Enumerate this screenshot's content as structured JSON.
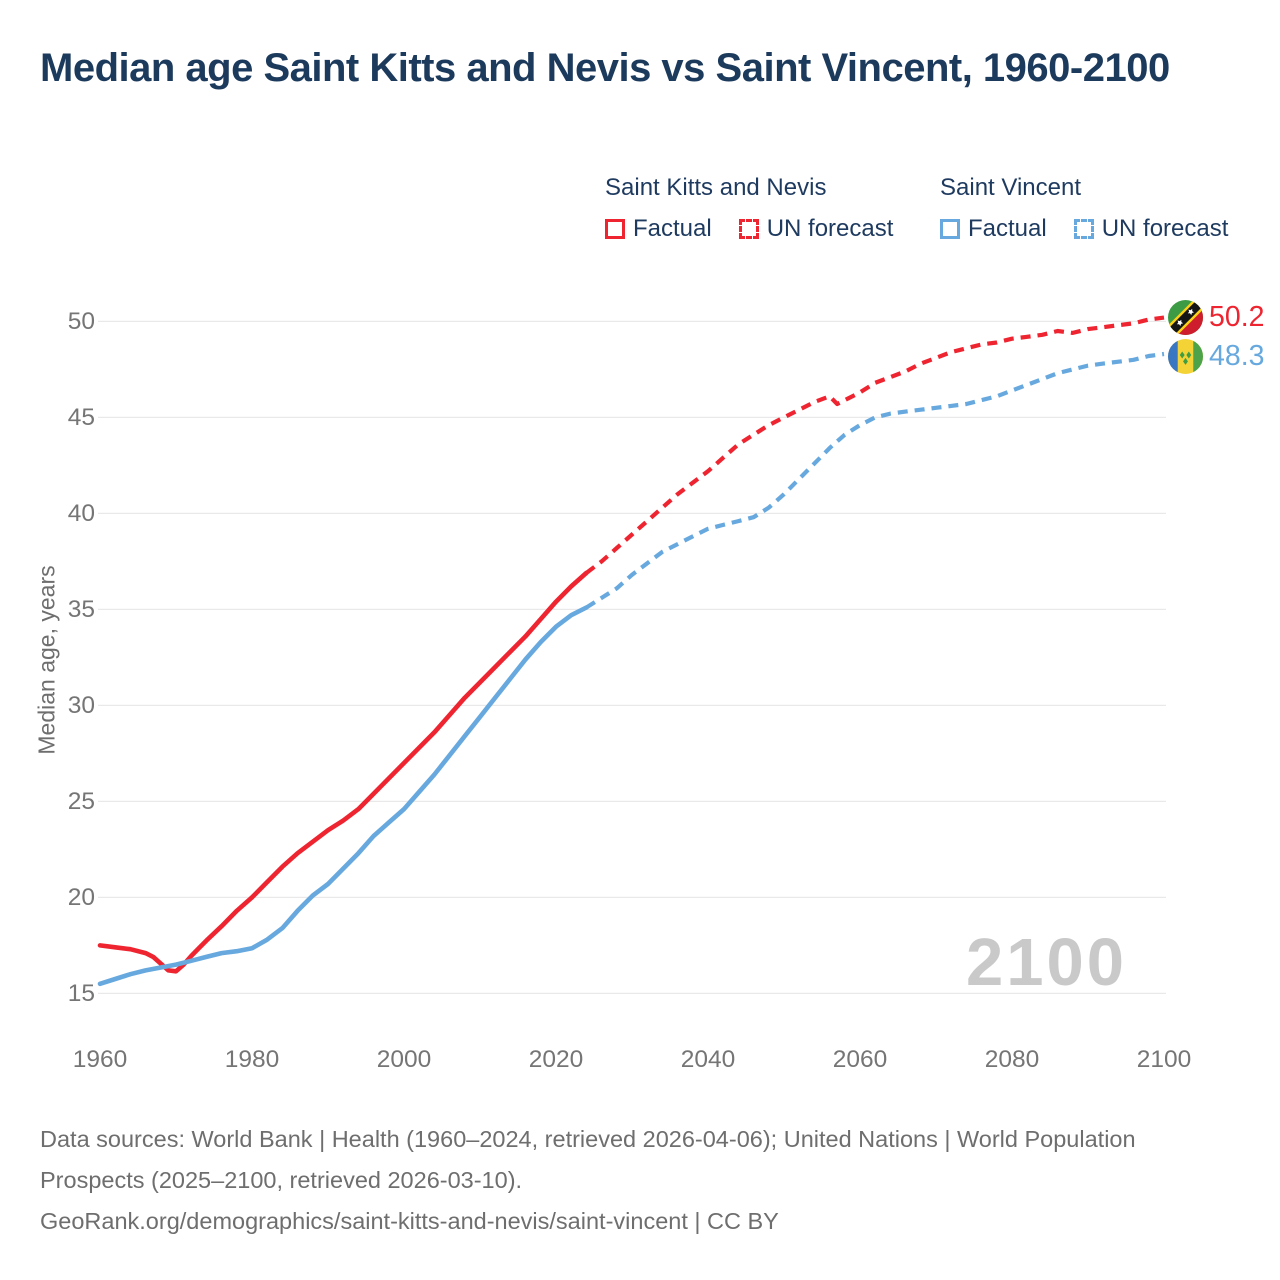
{
  "title": "Median age Saint Kitts and Nevis vs Saint Vincent, 1960-2100",
  "legend": {
    "groups": [
      {
        "name": "Saint Kitts and Nevis",
        "factual_label": "Factual",
        "forecast_label": "UN forecast",
        "color": "#ee2530"
      },
      {
        "name": "Saint Vincent",
        "factual_label": "Factual",
        "forecast_label": "UN forecast",
        "color": "#67a9de"
      }
    ]
  },
  "y_axis_title": "Median age, years",
  "watermark": "2100",
  "end_labels": [
    {
      "value": "50.2",
      "color": "#ee2530",
      "flag_icon": "flag-saint-kitts-and-nevis-icon"
    },
    {
      "value": "48.3",
      "color": "#67a9de",
      "flag_icon": "flag-saint-vincent-icon"
    }
  ],
  "footer": {
    "sources": "Data sources: World Bank | Health (1960–2024, retrieved 2026-04-06); United Nations | World Population Prospects (2025–2100, retrieved 2026-03-10).",
    "attribution": "GeoRank.org/demographics/saint-kitts-and-nevis/saint-vincent | CC BY"
  },
  "chart_data": {
    "type": "line",
    "title": "Median age Saint Kitts and Nevis vs Saint Vincent, 1960-2100",
    "xlabel": "",
    "ylabel": "Median age, years",
    "xlim": [
      1960,
      2100
    ],
    "ylim": [
      15,
      50
    ],
    "grid": "horizontal",
    "legend_position": "top-right",
    "forecast_start_year": 2024,
    "x_ticks": [
      1960,
      1980,
      2000,
      2020,
      2040,
      2060,
      2080,
      2100
    ],
    "y_ticks": [
      15,
      20,
      25,
      30,
      35,
      40,
      45,
      50
    ],
    "series": [
      {
        "name": "Saint Kitts and Nevis — Factual",
        "style": "solid",
        "color": "#ee2530",
        "points": [
          [
            1960,
            17.5
          ],
          [
            1962,
            17.4
          ],
          [
            1964,
            17.3
          ],
          [
            1966,
            17.1
          ],
          [
            1967,
            16.9
          ],
          [
            1968,
            16.55
          ],
          [
            1969,
            16.2
          ],
          [
            1970,
            16.15
          ],
          [
            1971,
            16.5
          ],
          [
            1972,
            16.95
          ],
          [
            1973,
            17.35
          ],
          [
            1974,
            17.75
          ],
          [
            1976,
            18.5
          ],
          [
            1978,
            19.3
          ],
          [
            1980,
            20.0
          ],
          [
            1982,
            20.8
          ],
          [
            1984,
            21.6
          ],
          [
            1986,
            22.3
          ],
          [
            1988,
            22.9
          ],
          [
            1990,
            23.5
          ],
          [
            1992,
            24.0
          ],
          [
            1994,
            24.6
          ],
          [
            1996,
            25.4
          ],
          [
            1998,
            26.2
          ],
          [
            2000,
            27.0
          ],
          [
            2002,
            27.8
          ],
          [
            2004,
            28.6
          ],
          [
            2006,
            29.5
          ],
          [
            2008,
            30.4
          ],
          [
            2010,
            31.2
          ],
          [
            2012,
            32.0
          ],
          [
            2014,
            32.8
          ],
          [
            2016,
            33.6
          ],
          [
            2018,
            34.5
          ],
          [
            2020,
            35.4
          ],
          [
            2022,
            36.2
          ],
          [
            2024,
            36.9
          ]
        ]
      },
      {
        "name": "Saint Kitts and Nevis — UN forecast",
        "style": "dashed",
        "color": "#ee2530",
        "points": [
          [
            2024,
            36.9
          ],
          [
            2026,
            37.5
          ],
          [
            2028,
            38.2
          ],
          [
            2030,
            38.9
          ],
          [
            2032,
            39.6
          ],
          [
            2034,
            40.3
          ],
          [
            2036,
            41.0
          ],
          [
            2038,
            41.6
          ],
          [
            2040,
            42.2
          ],
          [
            2042,
            42.9
          ],
          [
            2044,
            43.6
          ],
          [
            2046,
            44.1
          ],
          [
            2048,
            44.6
          ],
          [
            2050,
            45.0
          ],
          [
            2052,
            45.4
          ],
          [
            2054,
            45.8
          ],
          [
            2056,
            46.1
          ],
          [
            2057,
            45.7
          ],
          [
            2058,
            45.9
          ],
          [
            2060,
            46.3
          ],
          [
            2062,
            46.8
          ],
          [
            2064,
            47.1
          ],
          [
            2066,
            47.4
          ],
          [
            2068,
            47.8
          ],
          [
            2070,
            48.1
          ],
          [
            2072,
            48.4
          ],
          [
            2074,
            48.6
          ],
          [
            2076,
            48.8
          ],
          [
            2078,
            48.9
          ],
          [
            2080,
            49.1
          ],
          [
            2082,
            49.2
          ],
          [
            2084,
            49.3
          ],
          [
            2086,
            49.5
          ],
          [
            2088,
            49.4
          ],
          [
            2090,
            49.6
          ],
          [
            2092,
            49.7
          ],
          [
            2094,
            49.8
          ],
          [
            2096,
            49.9
          ],
          [
            2098,
            50.1
          ],
          [
            2100,
            50.2
          ]
        ]
      },
      {
        "name": "Saint Vincent — Factual",
        "style": "solid",
        "color": "#67a9de",
        "points": [
          [
            1960,
            15.5
          ],
          [
            1962,
            15.75
          ],
          [
            1964,
            16.0
          ],
          [
            1966,
            16.2
          ],
          [
            1968,
            16.35
          ],
          [
            1970,
            16.5
          ],
          [
            1972,
            16.7
          ],
          [
            1974,
            16.9
          ],
          [
            1976,
            17.1
          ],
          [
            1978,
            17.2
          ],
          [
            1980,
            17.35
          ],
          [
            1982,
            17.8
          ],
          [
            1984,
            18.4
          ],
          [
            1986,
            19.3
          ],
          [
            1988,
            20.1
          ],
          [
            1990,
            20.7
          ],
          [
            1992,
            21.5
          ],
          [
            1994,
            22.3
          ],
          [
            1996,
            23.2
          ],
          [
            1998,
            23.9
          ],
          [
            2000,
            24.6
          ],
          [
            2002,
            25.5
          ],
          [
            2004,
            26.4
          ],
          [
            2006,
            27.4
          ],
          [
            2008,
            28.4
          ],
          [
            2010,
            29.4
          ],
          [
            2012,
            30.4
          ],
          [
            2014,
            31.4
          ],
          [
            2016,
            32.4
          ],
          [
            2018,
            33.3
          ],
          [
            2020,
            34.1
          ],
          [
            2022,
            34.7
          ],
          [
            2024,
            35.1
          ]
        ]
      },
      {
        "name": "Saint Vincent — UN forecast",
        "style": "dashed",
        "color": "#67a9de",
        "points": [
          [
            2024,
            35.1
          ],
          [
            2026,
            35.6
          ],
          [
            2028,
            36.1
          ],
          [
            2030,
            36.8
          ],
          [
            2032,
            37.4
          ],
          [
            2034,
            38.0
          ],
          [
            2036,
            38.4
          ],
          [
            2038,
            38.8
          ],
          [
            2040,
            39.2
          ],
          [
            2042,
            39.4
          ],
          [
            2044,
            39.6
          ],
          [
            2046,
            39.8
          ],
          [
            2048,
            40.3
          ],
          [
            2050,
            41.0
          ],
          [
            2052,
            41.8
          ],
          [
            2054,
            42.6
          ],
          [
            2056,
            43.4
          ],
          [
            2058,
            44.1
          ],
          [
            2060,
            44.6
          ],
          [
            2062,
            45.0
          ],
          [
            2064,
            45.2
          ],
          [
            2066,
            45.3
          ],
          [
            2068,
            45.4
          ],
          [
            2070,
            45.5
          ],
          [
            2072,
            45.6
          ],
          [
            2074,
            45.7
          ],
          [
            2076,
            45.9
          ],
          [
            2078,
            46.1
          ],
          [
            2080,
            46.4
          ],
          [
            2082,
            46.7
          ],
          [
            2084,
            47.0
          ],
          [
            2086,
            47.3
          ],
          [
            2088,
            47.5
          ],
          [
            2090,
            47.7
          ],
          [
            2092,
            47.8
          ],
          [
            2094,
            47.9
          ],
          [
            2096,
            48.0
          ],
          [
            2098,
            48.2
          ],
          [
            2100,
            48.3
          ]
        ]
      }
    ]
  }
}
